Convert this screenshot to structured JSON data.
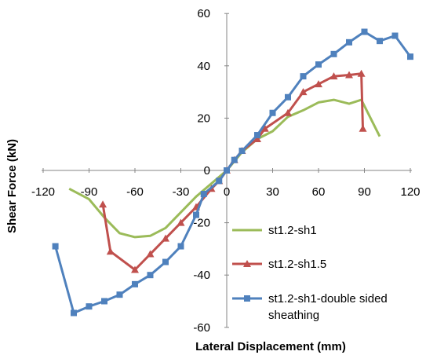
{
  "chart_data": {
    "type": "line",
    "title": "",
    "xlabel": "Lateral Displacement (mm)",
    "ylabel": "Shear Force (kN)",
    "xlim": [
      -120,
      120
    ],
    "ylim": [
      -60,
      60
    ],
    "x_ticks": [
      "-120",
      "-90",
      "-60",
      "-30",
      "0",
      "30",
      "60",
      "90",
      "120"
    ],
    "y_ticks": [
      "60",
      "40",
      "20",
      "0",
      "-20",
      "-40",
      "-60"
    ],
    "x_tick_values": [
      -120,
      -90,
      -60,
      -30,
      0,
      30,
      60,
      90,
      120
    ],
    "y_tick_values": [
      60,
      40,
      20,
      0,
      -20,
      -40,
      -60
    ],
    "grid": false,
    "legend_position": "bottom-right",
    "series": [
      {
        "name": "st1.2-sh1",
        "color": "#9BBB59",
        "marker": "none",
        "points": [
          [
            -103,
            -7
          ],
          [
            -90,
            -11
          ],
          [
            -80,
            -18
          ],
          [
            -70,
            -24
          ],
          [
            -60,
            -25.5
          ],
          [
            -50,
            -25
          ],
          [
            -40,
            -22
          ],
          [
            -30,
            -16
          ],
          [
            -20,
            -10
          ],
          [
            -10,
            -5
          ],
          [
            0,
            0
          ],
          [
            10,
            7
          ],
          [
            20,
            12
          ],
          [
            30,
            15
          ],
          [
            40,
            20.5
          ],
          [
            50,
            23
          ],
          [
            60,
            26
          ],
          [
            70,
            27
          ],
          [
            80,
            25.5
          ],
          [
            88,
            27
          ],
          [
            100,
            13
          ]
        ]
      },
      {
        "name": "st1.2-sh1.5",
        "color": "#C0504D",
        "marker": "triangle",
        "points": [
          [
            -81,
            -13
          ],
          [
            -76,
            -31
          ],
          [
            -60,
            -38
          ],
          [
            -50,
            -32
          ],
          [
            -40,
            -26
          ],
          [
            -30,
            -20
          ],
          [
            -20,
            -14
          ],
          [
            -10,
            -7
          ],
          [
            -5,
            -4
          ],
          [
            0,
            0
          ],
          [
            5,
            4
          ],
          [
            10,
            7.5
          ],
          [
            20,
            12
          ],
          [
            25,
            16
          ],
          [
            40,
            22
          ],
          [
            50,
            30
          ],
          [
            60,
            33
          ],
          [
            70,
            36
          ],
          [
            80,
            36.5
          ],
          [
            88,
            37
          ],
          [
            89,
            16
          ]
        ]
      },
      {
        "name": "st1.2-sh1-double sided sheathing",
        "color": "#4F81BD",
        "marker": "square",
        "points": [
          [
            -112,
            -29
          ],
          [
            -100,
            -54.5
          ],
          [
            -90,
            -52
          ],
          [
            -80,
            -50
          ],
          [
            -70,
            -47.5
          ],
          [
            -60,
            -43.5
          ],
          [
            -50,
            -40
          ],
          [
            -40,
            -35
          ],
          [
            -30,
            -29
          ],
          [
            -20,
            -17
          ],
          [
            -15,
            -9
          ],
          [
            -5,
            -4
          ],
          [
            0,
            0
          ],
          [
            5,
            4
          ],
          [
            10,
            7.5
          ],
          [
            20,
            13.5
          ],
          [
            30,
            22
          ],
          [
            40,
            28
          ],
          [
            50,
            36
          ],
          [
            60,
            40.5
          ],
          [
            70,
            44.5
          ],
          [
            80,
            49
          ],
          [
            90,
            53
          ],
          [
            100,
            49.5
          ],
          [
            110,
            51.5
          ],
          [
            120,
            43.5
          ]
        ]
      }
    ]
  }
}
